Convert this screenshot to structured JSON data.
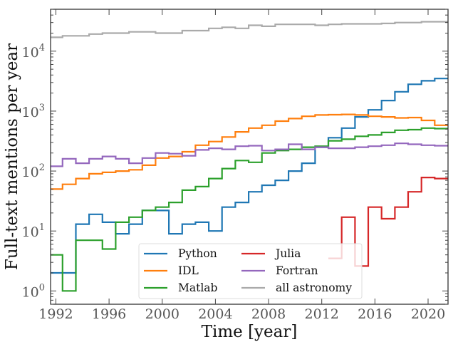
{
  "chart_data": {
    "type": "line",
    "style": "step-histogram",
    "title": "",
    "xlabel": "Time [year]",
    "ylabel": "Full-text mentions per year",
    "yscale": "log",
    "xlim": [
      1991.6,
      2021.5
    ],
    "ylim": [
      0.6,
      50000
    ],
    "grid": false,
    "legend_position": "lower-center",
    "legend_columns": 2,
    "x_ticks": [
      1992,
      1996,
      2000,
      2004,
      2008,
      2012,
      2016,
      2020
    ],
    "x_tick_labels": [
      "1992",
      "1996",
      "2000",
      "2004",
      "2008",
      "2012",
      "2016",
      "2020"
    ],
    "y_ticks": [
      1,
      10,
      100,
      1000,
      10000
    ],
    "y_tick_labels": [
      {
        "base": "10",
        "exp": "0"
      },
      {
        "base": "10",
        "exp": "1"
      },
      {
        "base": "10",
        "exp": "2"
      },
      {
        "base": "10",
        "exp": "3"
      },
      {
        "base": "10",
        "exp": "4"
      }
    ],
    "x": [
      1992,
      1993,
      1994,
      1995,
      1996,
      1997,
      1998,
      1999,
      2000,
      2001,
      2002,
      2003,
      2004,
      2005,
      2006,
      2007,
      2008,
      2009,
      2010,
      2011,
      2012,
      2013,
      2014,
      2015,
      2016,
      2017,
      2018,
      2019,
      2020,
      2021
    ],
    "series": [
      {
        "name": "Python",
        "color": "#1f77b4",
        "values": [
          2,
          2,
          13,
          19,
          14,
          9,
          13,
          22,
          22,
          9,
          13,
          14,
          10,
          25,
          30,
          45,
          58,
          70,
          100,
          135,
          250,
          360,
          520,
          800,
          1050,
          1500,
          2100,
          2800,
          3200,
          3500
        ]
      },
      {
        "name": "IDL",
        "color": "#ff7f0e",
        "values": [
          50,
          60,
          75,
          90,
          95,
          100,
          105,
          125,
          165,
          175,
          210,
          270,
          310,
          370,
          450,
          520,
          580,
          680,
          750,
          820,
          860,
          870,
          880,
          860,
          820,
          800,
          770,
          780,
          700,
          580
        ]
      },
      {
        "name": "Matlab",
        "color": "#2ca02c",
        "values": [
          4,
          1,
          7,
          7,
          5,
          14,
          17,
          22,
          25,
          30,
          48,
          55,
          75,
          110,
          150,
          140,
          200,
          220,
          230,
          250,
          260,
          320,
          340,
          380,
          400,
          440,
          480,
          490,
          520,
          510
        ]
      },
      {
        "name": "Julia",
        "color": "#d62728",
        "values": [
          null,
          null,
          null,
          null,
          null,
          null,
          null,
          null,
          null,
          null,
          null,
          null,
          null,
          null,
          null,
          null,
          null,
          null,
          null,
          null,
          null,
          3.5,
          17,
          2.6,
          25,
          16,
          25,
          45,
          78,
          75
        ]
      },
      {
        "name": "Fortran",
        "color": "#9467bd",
        "values": [
          120,
          160,
          135,
          160,
          175,
          160,
          135,
          165,
          200,
          195,
          180,
          225,
          240,
          230,
          260,
          265,
          220,
          230,
          280,
          230,
          250,
          240,
          240,
          250,
          260,
          270,
          290,
          280,
          270,
          265
        ]
      },
      {
        "name": "all astronomy",
        "color": "#aaaaaa",
        "values": [
          17000,
          18000,
          18000,
          19300,
          20000,
          20000,
          21000,
          21000,
          20000,
          20000,
          22000,
          22000,
          24000,
          25000,
          24000,
          27000,
          26000,
          28000,
          28000,
          28000,
          27000,
          28000,
          28500,
          28500,
          28500,
          29000,
          30000,
          30000,
          31000,
          31000
        ]
      }
    ]
  }
}
